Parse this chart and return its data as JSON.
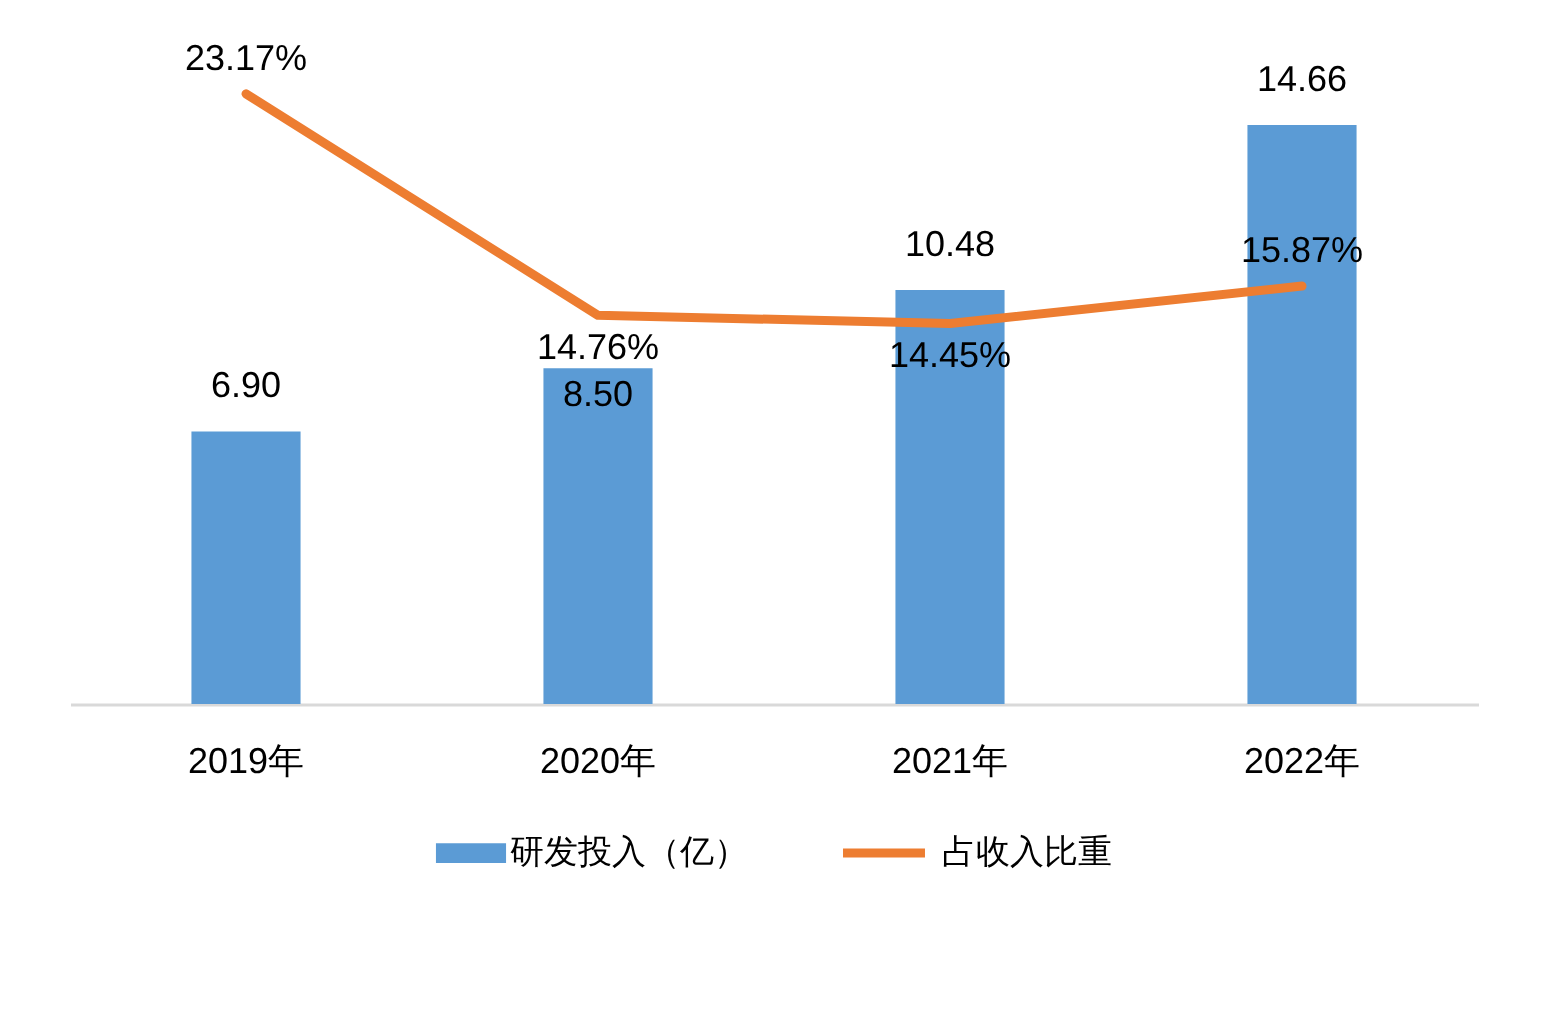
{
  "chart_data": {
    "type": "bar",
    "categories": [
      "2019年",
      "2020年",
      "2021年",
      "2022年"
    ],
    "series": [
      {
        "name": "研发投入（亿）",
        "color": "#5b9bd5",
        "values": [
          6.9,
          8.5,
          10.48,
          14.66
        ],
        "value_labels": [
          "6.90",
          "8.50",
          "10.48",
          "14.66"
        ]
      },
      {
        "name": "占收入比重",
        "type": "line",
        "axis": "y2",
        "color": "#ed7d31",
        "values": [
          23.17,
          14.76,
          14.45,
          15.87
        ],
        "value_labels": [
          "23.17%",
          "14.76%",
          "14.45%",
          "15.87%"
        ]
      }
    ],
    "tick_labels": "x",
    "legend": "bottom",
    "grid": false,
    "line_style": "solid"
  }
}
